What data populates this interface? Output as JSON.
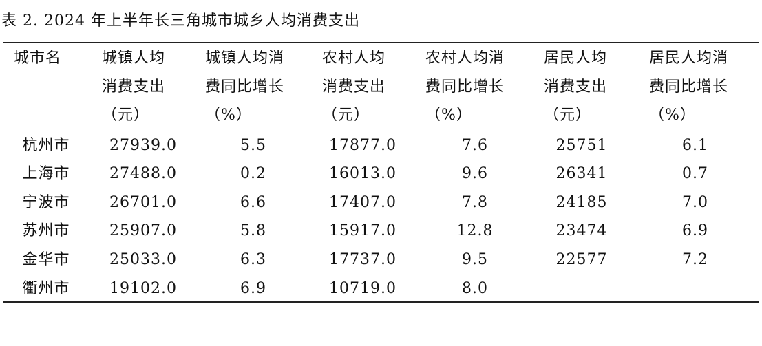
{
  "title": "表 2. 2024 年上半年长三角城市城乡人均消费支出",
  "table": {
    "headers": [
      [
        "城市名"
      ],
      [
        "城镇人均",
        "消费支出",
        "（元）"
      ],
      [
        "城镇人均消",
        "费同比增长",
        "（%）"
      ],
      [
        "农村人均",
        "消费支出",
        "（元）"
      ],
      [
        "农村人均消",
        "费同比增长",
        "（%）"
      ],
      [
        "居民人均",
        "消费支出",
        "（元）"
      ],
      [
        "居民人均消",
        "费同比增长",
        "（%）"
      ]
    ],
    "rows": [
      [
        "杭州市",
        "27939.0",
        "5.5",
        "17877.0",
        "7.6",
        "25751",
        "6.1"
      ],
      [
        "上海市",
        "27488.0",
        "0.2",
        "16013.0",
        "9.6",
        "26341",
        "0.7"
      ],
      [
        "宁波市",
        "26701.0",
        "6.6",
        "17407.0",
        "7.8",
        "24185",
        "7.0"
      ],
      [
        "苏州市",
        "25907.0",
        "5.8",
        "15917.0",
        "12.8",
        "23474",
        "6.9"
      ],
      [
        "金华市",
        "25033.0",
        "6.3",
        "17737.0",
        "9.5",
        "22577",
        "7.2"
      ],
      [
        "衢州市",
        "19102.0",
        "6.9",
        "10719.0",
        "8.0"
      ]
    ]
  }
}
